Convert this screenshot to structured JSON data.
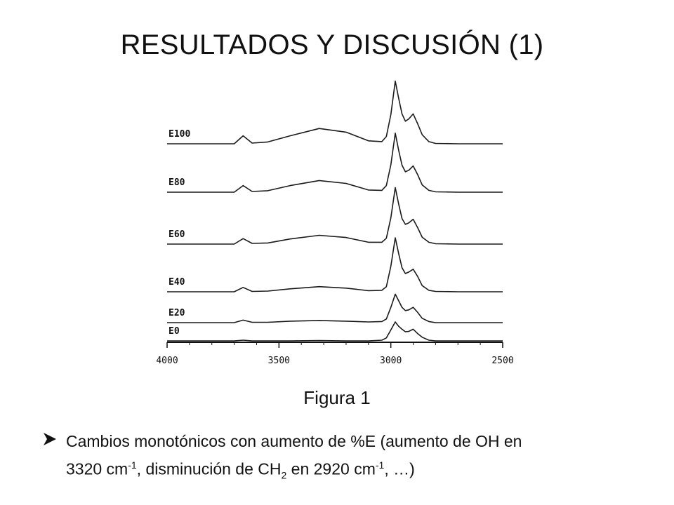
{
  "slide": {
    "title": "RESULTADOS Y DISCUSIÓN (1)",
    "figure_caption": "Figura 1",
    "bullet": {
      "icon": "arrow-bullet-icon",
      "line1": "Cambios monotónicos con aumento de %E (aumento de OH en",
      "line2_a": "3320 cm",
      "sup1": "-1",
      "line2_b": ", disminución de CH",
      "sub1": "2",
      "line2_c": " en 2920 cm",
      "sup2": "-1",
      "line2_d": ", …)"
    }
  },
  "chart_data": {
    "type": "line",
    "title": "",
    "xlabel": "",
    "ylabel": "",
    "xlim": [
      4000,
      2500
    ],
    "x_reversed": true,
    "x_ticks": [
      4000,
      3500,
      3000,
      2500
    ],
    "y_axis_shown": false,
    "grid": false,
    "legend": "none",
    "line_color": "#1a1a1a",
    "x": [
      4000,
      3800,
      3700,
      3660,
      3620,
      3550,
      3450,
      3320,
      3200,
      3100,
      3040,
      3020,
      3000,
      2980,
      2965,
      2950,
      2935,
      2920,
      2900,
      2880,
      2860,
      2830,
      2800,
      2700,
      2500
    ],
    "series": [
      {
        "name": "E100",
        "values": [
          0.0,
          0.0,
          0.0,
          0.22,
          0.02,
          0.05,
          0.22,
          0.42,
          0.32,
          0.08,
          0.06,
          0.2,
          0.8,
          1.72,
          1.25,
          0.82,
          0.62,
          0.68,
          0.82,
          0.55,
          0.25,
          0.06,
          0.01,
          0.0,
          0.0
        ]
      },
      {
        "name": "E80",
        "values": [
          0.0,
          0.0,
          0.0,
          0.18,
          0.02,
          0.04,
          0.18,
          0.32,
          0.24,
          0.06,
          0.05,
          0.18,
          0.75,
          1.62,
          1.15,
          0.74,
          0.56,
          0.6,
          0.72,
          0.48,
          0.2,
          0.05,
          0.01,
          0.0,
          0.0
        ]
      },
      {
        "name": "E60",
        "values": [
          0.0,
          0.0,
          0.0,
          0.15,
          0.02,
          0.03,
          0.14,
          0.24,
          0.18,
          0.05,
          0.05,
          0.16,
          0.72,
          1.55,
          1.1,
          0.7,
          0.54,
          0.58,
          0.68,
          0.45,
          0.19,
          0.05,
          0.01,
          0.0,
          0.0
        ]
      },
      {
        "name": "E40",
        "values": [
          0.0,
          0.0,
          0.0,
          0.12,
          0.01,
          0.02,
          0.08,
          0.14,
          0.1,
          0.03,
          0.04,
          0.14,
          0.7,
          1.48,
          1.05,
          0.66,
          0.5,
          0.54,
          0.62,
          0.42,
          0.17,
          0.04,
          0.01,
          0.0,
          0.0
        ]
      },
      {
        "name": "E20",
        "values": [
          0.0,
          0.0,
          0.0,
          0.07,
          0.01,
          0.01,
          0.04,
          0.06,
          0.04,
          0.02,
          0.03,
          0.1,
          0.42,
          0.78,
          0.6,
          0.42,
          0.33,
          0.35,
          0.42,
          0.28,
          0.12,
          0.03,
          0.0,
          0.0,
          0.0
        ]
      },
      {
        "name": "E0",
        "values": [
          0.0,
          0.0,
          0.0,
          0.02,
          0.0,
          0.0,
          0.0,
          0.01,
          0.0,
          0.0,
          0.02,
          0.08,
          0.3,
          0.52,
          0.4,
          0.32,
          0.25,
          0.26,
          0.32,
          0.2,
          0.1,
          0.02,
          0.0,
          0.0,
          0.0
        ]
      }
    ]
  }
}
